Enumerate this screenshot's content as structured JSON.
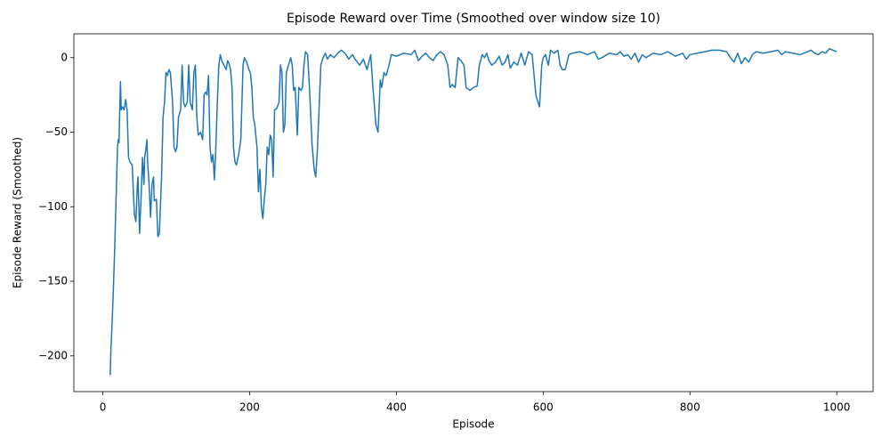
{
  "chart_data": {
    "type": "line",
    "title": "Episode Reward over Time (Smoothed over window size 10)",
    "x_label": "Episode",
    "y_label": "Episode Reward (Smoothed)",
    "xlim": [
      -39.5,
      1049.5
    ],
    "ylim": [
      -224,
      16
    ],
    "xticks": [
      0,
      200,
      400,
      600,
      800,
      1000
    ],
    "yticks": [
      {
        "value": -200,
        "label": "−200"
      },
      {
        "value": -150,
        "label": "−150"
      },
      {
        "value": -100,
        "label": "−100"
      },
      {
        "value": -50,
        "label": "−50"
      },
      0
    ],
    "series": [
      {
        "color": "#1f77b4",
        "x": [
          10,
          11,
          12,
          14,
          16,
          18,
          20,
          21,
          22,
          23,
          24,
          25,
          27,
          29,
          31,
          33,
          35,
          37,
          40,
          42,
          43,
          45,
          47,
          48,
          50,
          52,
          54,
          56,
          57,
          59,
          60,
          61,
          63,
          65,
          67,
          69,
          70,
          73,
          75,
          77,
          80,
          82,
          84,
          86,
          88,
          90,
          92,
          95,
          97,
          99,
          101,
          103,
          106,
          108,
          110,
          112,
          115,
          117,
          119,
          122,
          124,
          126,
          128,
          130,
          133,
          136,
          138,
          140,
          142,
          144,
          146,
          148,
          150,
          152,
          154,
          156,
          158,
          160,
          162,
          165,
          168,
          170,
          172,
          174,
          176,
          178,
          180,
          182,
          185,
          188,
          191,
          193,
          196,
          199,
          201,
          203,
          205,
          207,
          210,
          212,
          214,
          216,
          218,
          220,
          222,
          224,
          226,
          228,
          230,
          232,
          234,
          237,
          240,
          242,
          244,
          246,
          248,
          250,
          253,
          256,
          258,
          260,
          262,
          265,
          267,
          270,
          272,
          274,
          276,
          279,
          282,
          285,
          288,
          290,
          292,
          295,
          297,
          300,
          303,
          306,
          310,
          315,
          320,
          325,
          330,
          335,
          340,
          345,
          350,
          355,
          360,
          365,
          368,
          372,
          375,
          378,
          380,
          383,
          386,
          390,
          393,
          400,
          410,
          420,
          425,
          430,
          435,
          440,
          445,
          450,
          455,
          460,
          465,
          470,
          473,
          476,
          480,
          484,
          488,
          492,
          495,
          500,
          505,
          510,
          513,
          517,
          520,
          523,
          526,
          530,
          535,
          540,
          544,
          548,
          552,
          555,
          560,
          565,
          570,
          575,
          580,
          585,
          590,
          593,
          595,
          598,
          600,
          603,
          607,
          610,
          615,
          620,
          623,
          626,
          630,
          635,
          640,
          650,
          660,
          670,
          675,
          680,
          690,
          700,
          705,
          710,
          715,
          720,
          725,
          730,
          735,
          740,
          750,
          760,
          770,
          780,
          790,
          795,
          800,
          810,
          820,
          830,
          840,
          850,
          855,
          860,
          865,
          870,
          875,
          880,
          885,
          890,
          900,
          910,
          920,
          925,
          930,
          940,
          950,
          960,
          965,
          970,
          975,
          980,
          985,
          990,
          995,
          1000
        ],
        "values": [
          -213,
          -195,
          -185,
          -160,
          -130,
          -95,
          -60,
          -55,
          -57,
          -35,
          -16,
          -35,
          -33,
          -35,
          -28,
          -35,
          -67,
          -70,
          -72,
          -95,
          -105,
          -110,
          -85,
          -80,
          -118,
          -95,
          -67,
          -85,
          -67,
          -60,
          -55,
          -70,
          -85,
          -107,
          -85,
          -80,
          -96,
          -95,
          -120,
          -118,
          -80,
          -40,
          -30,
          -10,
          -12,
          -8,
          -10,
          -30,
          -60,
          -63,
          -60,
          -40,
          -35,
          -5,
          -30,
          -33,
          -30,
          -5,
          -30,
          -35,
          -10,
          -5,
          -40,
          -52,
          -50,
          -55,
          -25,
          -23,
          -25,
          -12,
          -60,
          -70,
          -65,
          -82,
          -60,
          -30,
          -5,
          2,
          -2,
          -5,
          -8,
          -2,
          -4,
          -8,
          -20,
          -60,
          -70,
          -72,
          -65,
          -55,
          -5,
          0,
          -3,
          -8,
          -10,
          -20,
          -40,
          -45,
          -60,
          -90,
          -75,
          -100,
          -108,
          -95,
          -85,
          -60,
          -65,
          -52,
          -55,
          -80,
          -35,
          -34,
          -30,
          -5,
          -10,
          -50,
          -45,
          -10,
          -5,
          0,
          -5,
          -22,
          -20,
          -52,
          -20,
          -22,
          -20,
          -5,
          4,
          2,
          -25,
          -58,
          -75,
          -80,
          -65,
          -30,
          -5,
          0,
          3,
          -1,
          2,
          0,
          3,
          5,
          3,
          -1,
          2,
          -2,
          -5,
          -1,
          -8,
          2,
          -20,
          -45,
          -50,
          -15,
          -20,
          -10,
          -12,
          -5,
          2,
          1,
          3,
          2,
          5,
          -2,
          1,
          3,
          0,
          -2,
          2,
          4,
          2,
          -5,
          -20,
          -18,
          -20,
          0,
          -2,
          -5,
          -20,
          -22,
          -20,
          -19,
          -5,
          2,
          0,
          3,
          -2,
          -5,
          -3,
          1,
          -5,
          -3,
          2,
          -7,
          -3,
          -5,
          3,
          -5,
          4,
          2,
          -25,
          -30,
          -33,
          -5,
          0,
          2,
          -5,
          5,
          3,
          5,
          -5,
          -8,
          -8,
          2,
          3,
          4,
          2,
          4,
          -1,
          0,
          3,
          2,
          4,
          1,
          2,
          -1,
          3,
          -3,
          2,
          0,
          3,
          2,
          4,
          1,
          3,
          -1,
          2,
          3,
          4,
          5,
          5,
          4,
          0,
          -3,
          3,
          -4,
          0,
          -3,
          2,
          4,
          3,
          4,
          5,
          2,
          4,
          3,
          2,
          4,
          5,
          3,
          2,
          4,
          3,
          6,
          5,
          4
        ]
      }
    ]
  }
}
